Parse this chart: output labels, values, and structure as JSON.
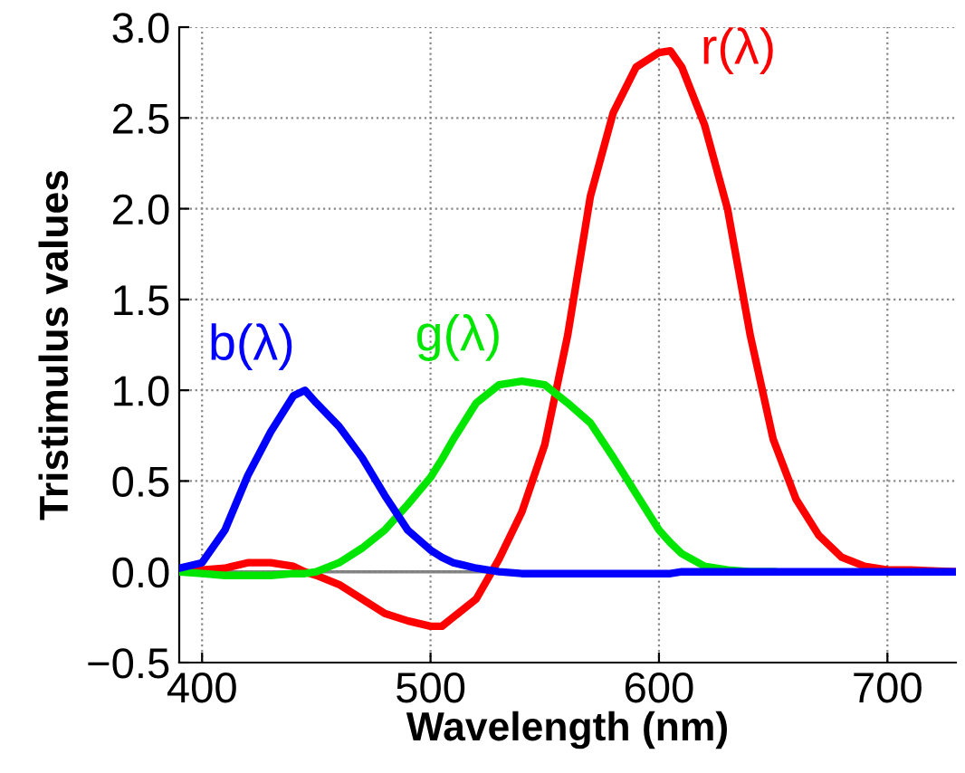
{
  "chart_data": {
    "type": "line",
    "xlabel": "Wavelength (nm)",
    "ylabel": "Tristimulus values",
    "x": [
      390,
      400,
      410,
      420,
      430,
      440,
      445,
      450,
      460,
      470,
      480,
      490,
      500,
      505,
      510,
      520,
      530,
      540,
      550,
      560,
      570,
      580,
      590,
      600,
      605,
      610,
      620,
      630,
      640,
      650,
      660,
      670,
      680,
      690,
      700,
      710,
      730
    ],
    "series": [
      {
        "name": "r(λ)",
        "color": "#ff0000",
        "values": [
          0,
          0.01,
          0.02,
          0.05,
          0.05,
          0.03,
          0.0,
          -0.02,
          -0.07,
          -0.15,
          -0.23,
          -0.27,
          -0.3,
          -0.3,
          -0.25,
          -0.15,
          0.07,
          0.33,
          0.7,
          1.3,
          2.07,
          2.53,
          2.78,
          2.86,
          2.87,
          2.78,
          2.46,
          2.0,
          1.3,
          0.73,
          0.4,
          0.2,
          0.08,
          0.03,
          0.01,
          0.01,
          0
        ]
      },
      {
        "name": "g(λ)",
        "color": "#00e600",
        "values": [
          0,
          -0.01,
          -0.02,
          -0.02,
          -0.02,
          -0.01,
          -0.01,
          0,
          0.05,
          0.13,
          0.23,
          0.37,
          0.52,
          0.62,
          0.73,
          0.93,
          1.03,
          1.05,
          1.03,
          0.93,
          0.82,
          0.63,
          0.43,
          0.23,
          0.16,
          0.1,
          0.03,
          0.01,
          0,
          0,
          null,
          null,
          null,
          null,
          null,
          null,
          null
        ]
      },
      {
        "name": "b(λ)",
        "color": "#0000ff",
        "values": [
          0.02,
          0.05,
          0.23,
          0.53,
          0.77,
          0.97,
          1.0,
          0.93,
          0.8,
          0.63,
          0.42,
          0.23,
          0.12,
          0.08,
          0.05,
          0.02,
          0,
          -0.01,
          -0.01,
          -0.01,
          -0.01,
          -0.01,
          -0.01,
          -0.01,
          -0.01,
          0,
          0,
          0,
          0,
          0,
          0,
          0,
          0,
          0,
          0,
          0,
          0
        ]
      }
    ],
    "xlim": [
      390,
      730
    ],
    "ylim": [
      -0.5,
      3.0
    ],
    "xticks": [
      400,
      500,
      600,
      700
    ],
    "yticks": [
      {
        "value": -0.5,
        "label": "−0.5"
      },
      {
        "value": 0,
        "label": "0.0"
      },
      {
        "value": 0.5,
        "label": "0.5"
      },
      {
        "value": 1.0,
        "label": "1.0"
      },
      {
        "value": 1.5,
        "label": "1.5"
      },
      {
        "value": 2.0,
        "label": "2.0"
      },
      {
        "value": 2.5,
        "label": "2.5"
      },
      {
        "value": 3.0,
        "label": "3.0"
      }
    ],
    "ref_lines": [
      {
        "axis": "y",
        "value": 0,
        "color": "#808080"
      }
    ],
    "grid": true,
    "marker": "none",
    "line_style": "solid"
  }
}
